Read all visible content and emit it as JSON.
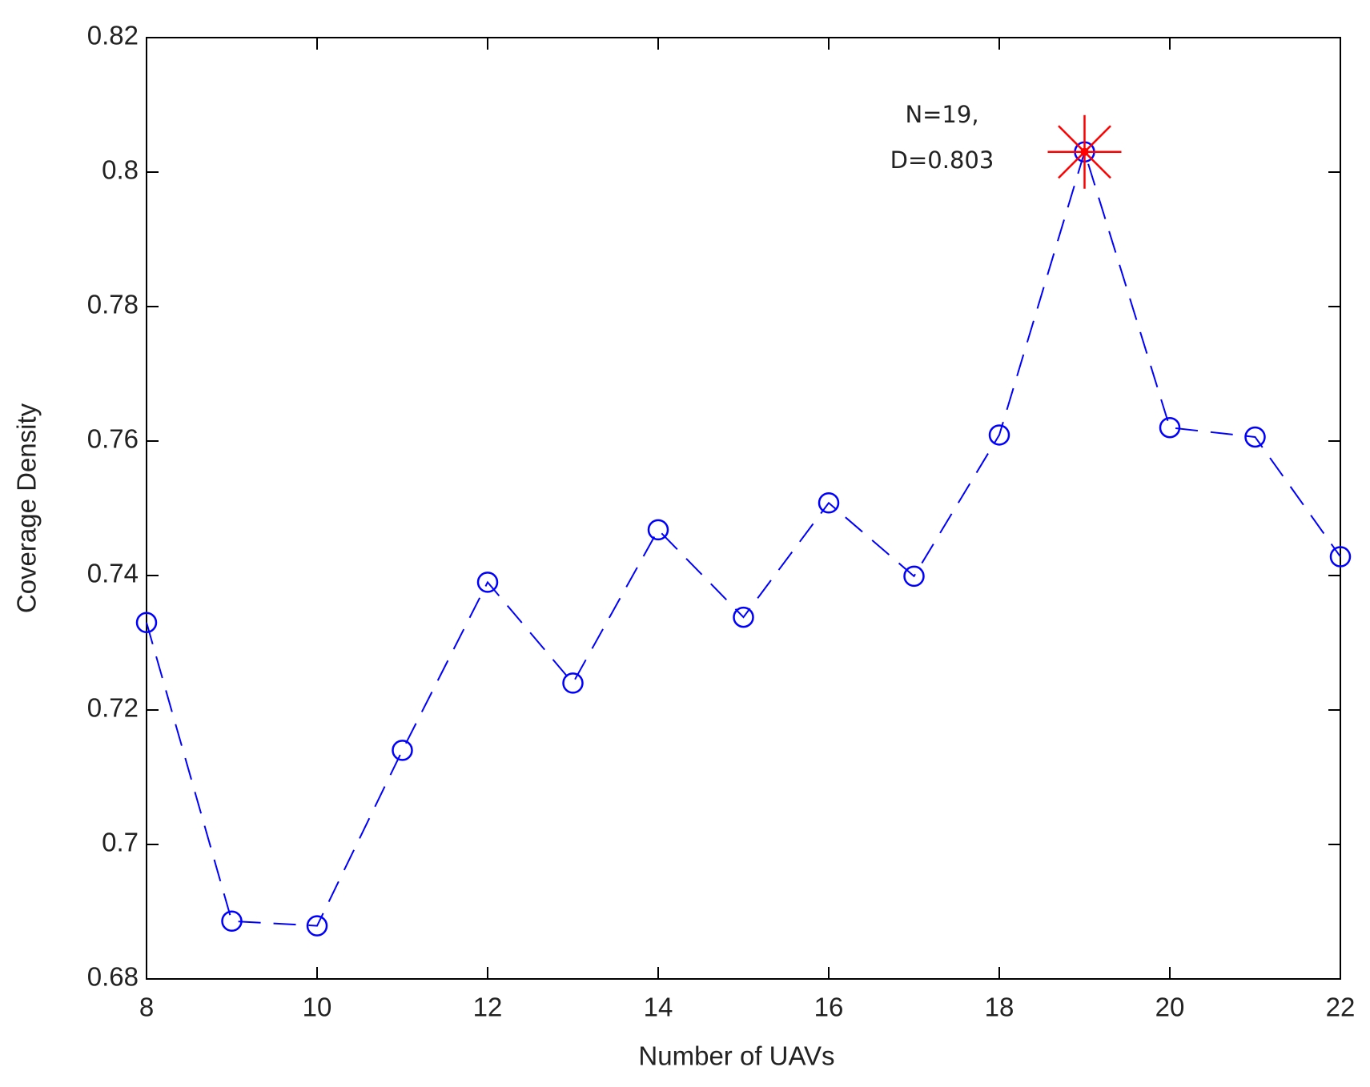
{
  "chart_data": {
    "type": "line",
    "xlabel": "Number of UAVs",
    "ylabel": "Coverage Density",
    "x": [
      8,
      9,
      10,
      11,
      12,
      13,
      14,
      15,
      16,
      17,
      18,
      19,
      20,
      21,
      22
    ],
    "series": [
      {
        "color": "#0000ff",
        "values": [
          0.733,
          0.6886,
          0.6879,
          0.714,
          0.739,
          0.724,
          0.7468,
          0.7338,
          0.7508,
          0.7399,
          0.7609,
          0.803,
          0.762,
          0.7606,
          0.7428
        ]
      }
    ],
    "highlight": {
      "x": 19,
      "y": 0.803,
      "color": "#ff0000",
      "label": [
        "N=19,",
        "D=0.803"
      ]
    },
    "xlim": [
      8,
      22
    ],
    "xticks": [
      8,
      10,
      12,
      14,
      16,
      18,
      20,
      22
    ],
    "ylim": [
      0.68,
      0.82
    ],
    "yticks": [
      0.68,
      0.7,
      0.72,
      0.74,
      0.76,
      0.78,
      0.8,
      0.82
    ],
    "grid": false
  }
}
